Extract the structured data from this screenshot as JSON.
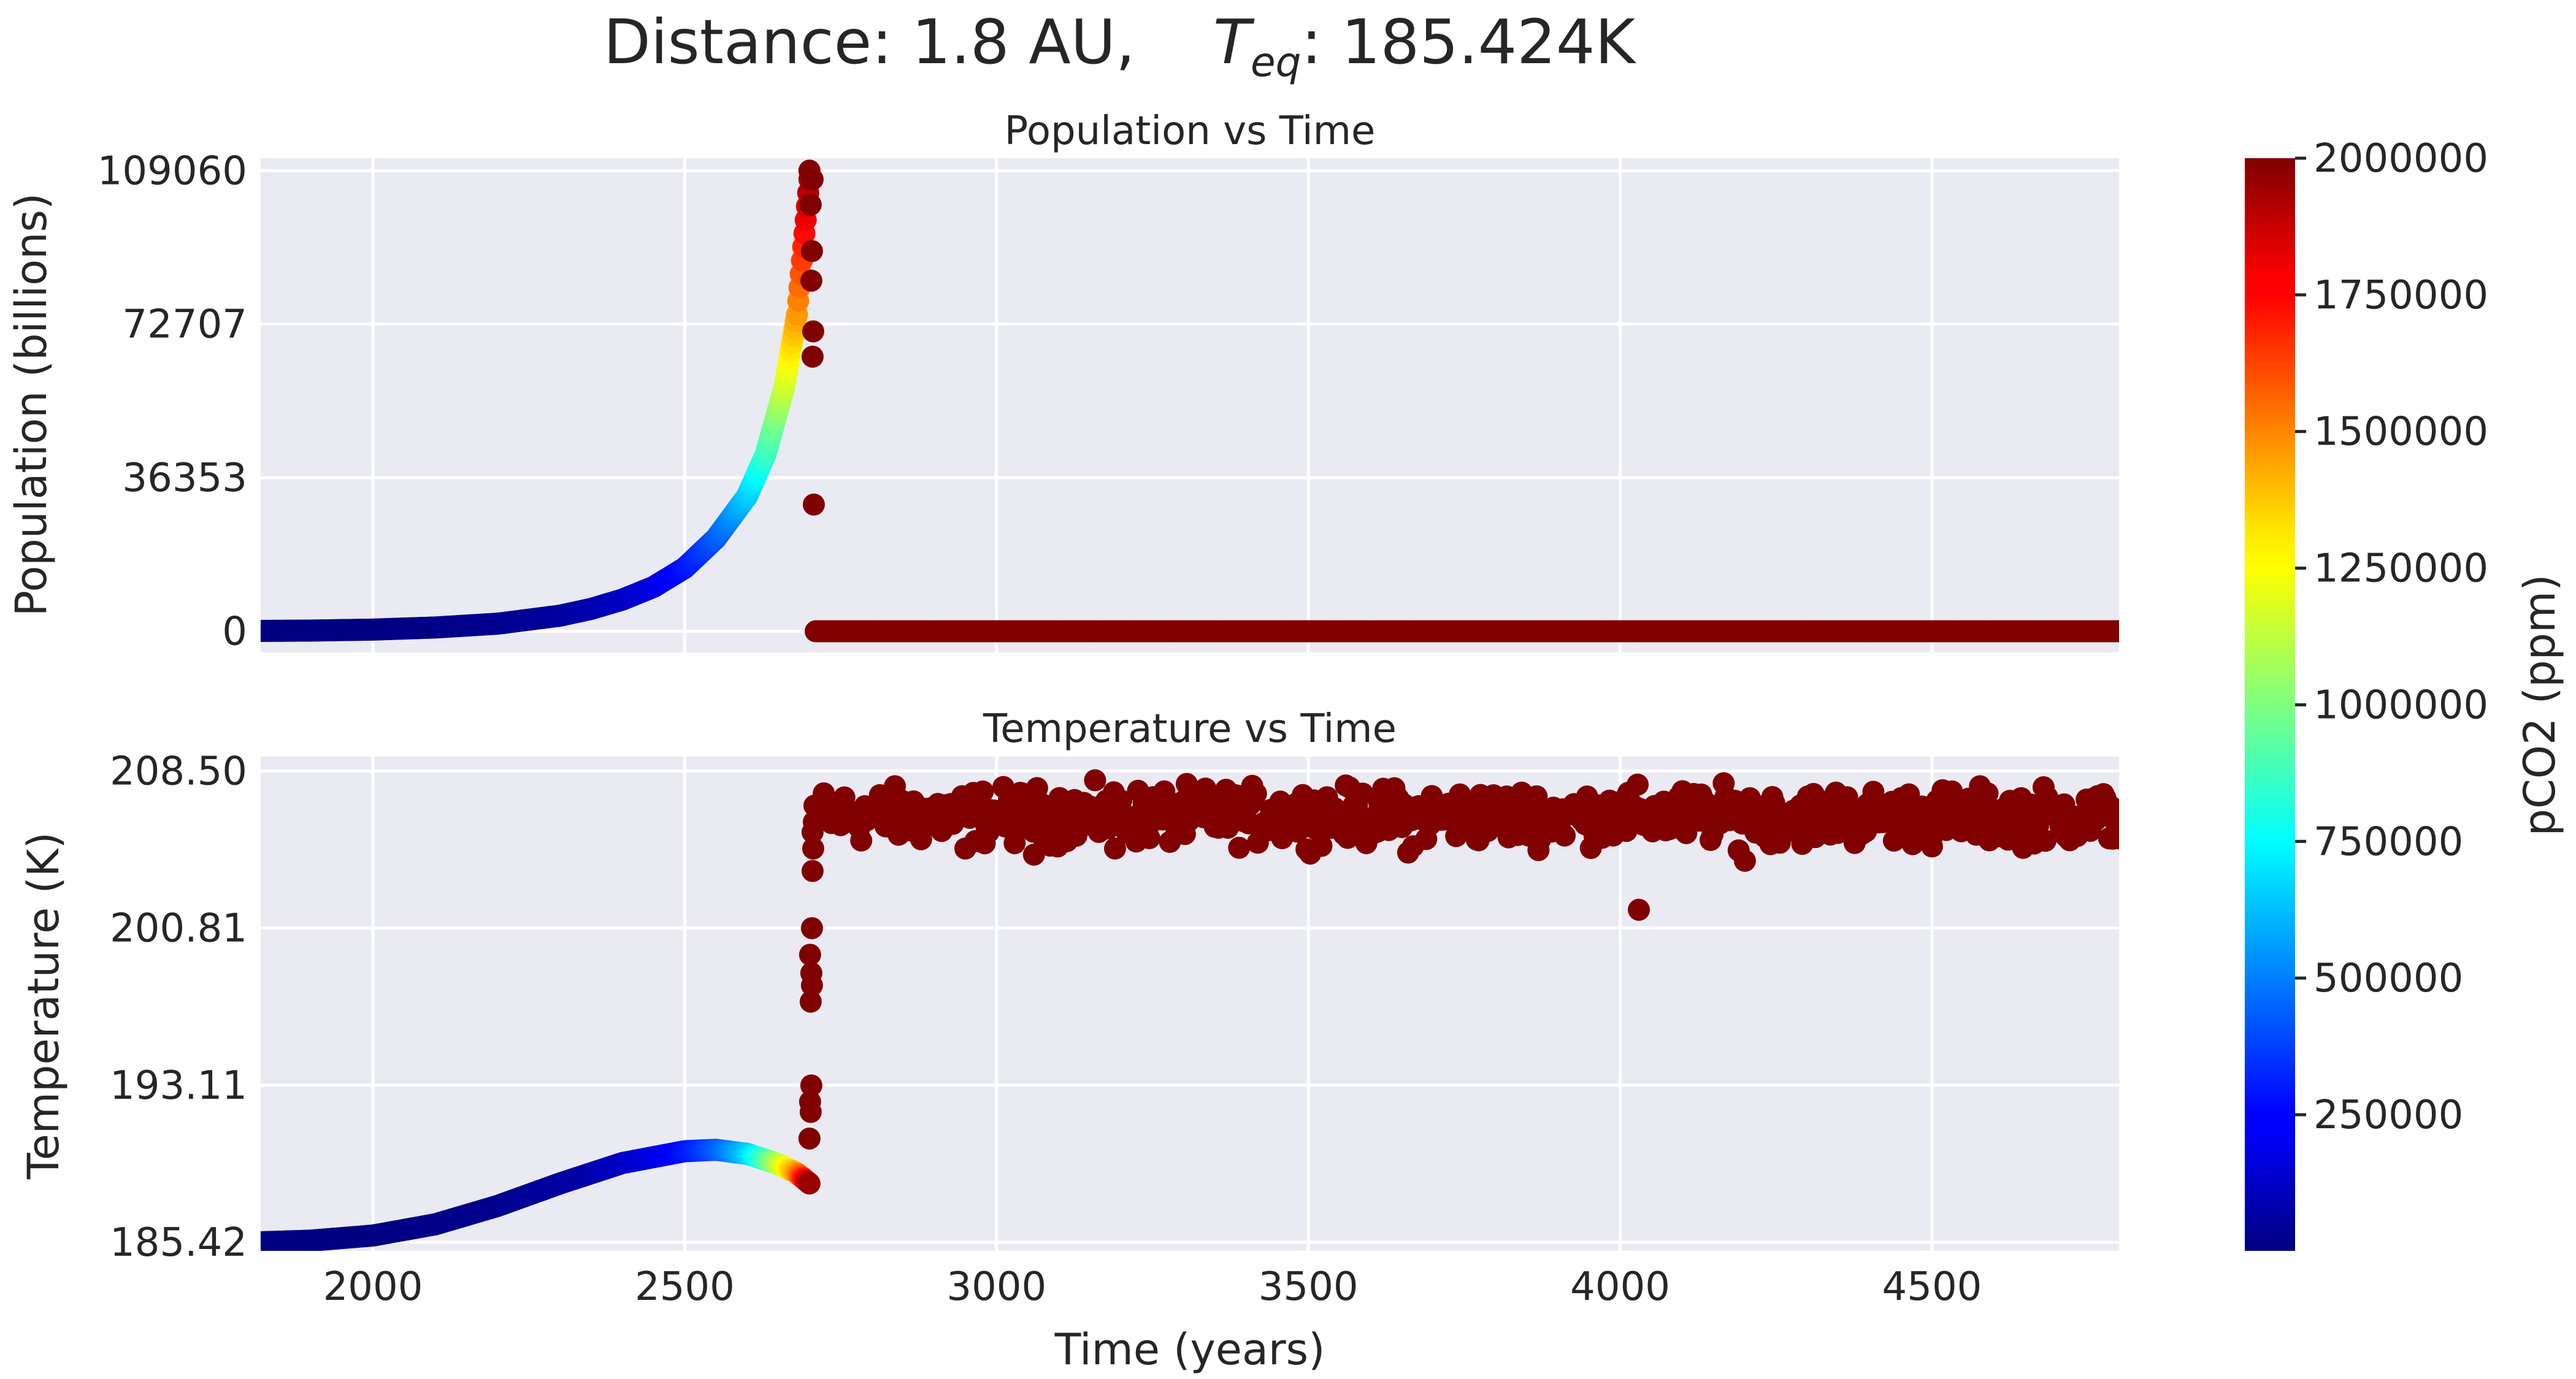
{
  "figure": {
    "title_prefix": "Distance: 1.8 AU,",
    "title_teq_symbol": "T",
    "title_teq_sub": "eq",
    "title_suffix": ": 185.424K"
  },
  "colorbar": {
    "label": "pCO2 (ppm)",
    "colormap": "jet",
    "min": 1000,
    "max": 2000000,
    "ticks": [
      250000,
      500000,
      750000,
      1000000,
      1250000,
      1500000,
      1750000,
      2000000
    ],
    "tick_labels": [
      "250000",
      "500000",
      "750000",
      "1000000",
      "1250000",
      "1500000",
      "1750000",
      "2000000"
    ]
  },
  "chart_data": [
    {
      "type": "scatter",
      "title": "Population vs Time",
      "xlabel": "",
      "ylabel": "Population (billions)",
      "xlim": [
        1820,
        4800
      ],
      "ylim": [
        -5000,
        112000
      ],
      "xticks": [
        2000,
        2500,
        3000,
        3500,
        4000,
        4500
      ],
      "xtick_labels": [
        "",
        "",
        "",
        "",
        "",
        ""
      ],
      "yticks": [
        0,
        36353,
        72707,
        109060
      ],
      "ytick_labels": [
        "0",
        "36353",
        "72707",
        "109060"
      ],
      "color_variable": "pCO2 (ppm)",
      "series": [
        {
          "description": "exponential growth phase",
          "x": [
            1820,
            1900,
            2000,
            2100,
            2200,
            2300,
            2350,
            2400,
            2450,
            2500,
            2550,
            2600,
            2630,
            2660,
            2680,
            2700
          ],
          "y": [
            90,
            170,
            400,
            900,
            1800,
            3700,
            5300,
            7500,
            10500,
            15000,
            22000,
            32000,
            42000,
            58000,
            75000,
            107000
          ],
          "c": [
            3000,
            5000,
            8000,
            15000,
            30000,
            60000,
            90000,
            130000,
            190000,
            280000,
            420000,
            640000,
            850000,
            1150000,
            1450000,
            1950000
          ]
        },
        {
          "description": "collapse points",
          "x": [
            2700,
            2705,
            2702,
            2704,
            2703,
            2706,
            2705,
            2707
          ],
          "y": [
            109060,
            107000,
            101000,
            90000,
            83000,
            71000,
            65000,
            30000
          ],
          "c": [
            2000000,
            2000000,
            2000000,
            2000000,
            2000000,
            2000000,
            2000000,
            2000000
          ]
        },
        {
          "description": "post-collapse zero population",
          "x_start": 2710,
          "x_end": 4800,
          "y": 0,
          "c": 2000000
        }
      ]
    },
    {
      "type": "scatter",
      "title": "Temperature vs Time",
      "xlabel": "Time (years)",
      "ylabel": "Temperature (K)",
      "xlim": [
        1820,
        4800
      ],
      "ylim": [
        185.0,
        209.2
      ],
      "xticks": [
        2000,
        2500,
        3000,
        3500,
        4000,
        4500
      ],
      "xtick_labels": [
        "2000",
        "2500",
        "3000",
        "3500",
        "4000",
        "4500"
      ],
      "yticks": [
        185.42,
        193.11,
        200.81,
        208.5
      ],
      "ytick_labels": [
        "185.42",
        "193.11",
        "200.81",
        "208.50"
      ],
      "color_variable": "pCO2 (ppm)",
      "series": [
        {
          "description": "warming phase",
          "x": [
            1820,
            1900,
            2000,
            2100,
            2200,
            2300,
            2400,
            2500,
            2550,
            2600,
            2650,
            2680,
            2700
          ],
          "y": [
            185.42,
            185.5,
            185.75,
            186.3,
            187.2,
            188.3,
            189.3,
            189.88,
            189.95,
            189.75,
            189.25,
            188.8,
            188.3
          ],
          "c": [
            3000,
            5000,
            8000,
            15000,
            30000,
            60000,
            130000,
            280000,
            420000,
            640000,
            1100000,
            1450000,
            1950000
          ]
        },
        {
          "description": "transition jump",
          "x": [
            2700,
            2702,
            2701,
            2703,
            2702,
            2704,
            2703,
            2701,
            2704,
            2705,
            2706,
            2705,
            2707,
            2708
          ],
          "y": [
            190.5,
            191.8,
            192.3,
            193.1,
            197.2,
            198.0,
            198.6,
            199.5,
            200.8,
            203.6,
            204.7,
            205.5,
            206.0,
            206.8
          ],
          "c": [
            2000000,
            2000000,
            2000000,
            2000000,
            2000000,
            2000000,
            2000000,
            2000000,
            2000000,
            2000000,
            2000000,
            2000000,
            2000000,
            2000000
          ]
        },
        {
          "description": "post-collapse noisy plateau",
          "x_start": 2720,
          "x_end": 4800,
          "y_mean": 206.3,
          "y_spread": 1.3,
          "c": 2000000,
          "outliers": [
            {
              "x": 2950,
              "y": 204.7
            },
            {
              "x": 3060,
              "y": 204.4
            },
            {
              "x": 3190,
              "y": 204.7
            },
            {
              "x": 3660,
              "y": 204.5
            },
            {
              "x": 4030,
              "y": 201.7
            },
            {
              "x": 4200,
              "y": 204.1
            },
            {
              "x": 4500,
              "y": 204.8
            },
            {
              "x": 4800,
              "y": 205.2
            }
          ]
        }
      ]
    }
  ]
}
